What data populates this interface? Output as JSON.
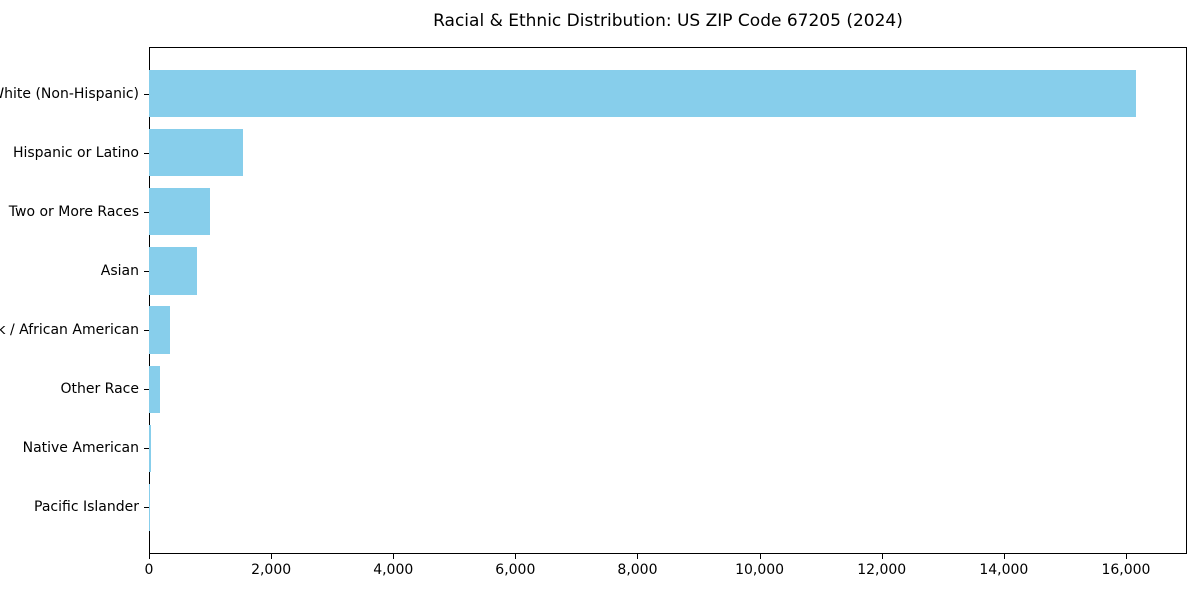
{
  "chart_data": {
    "type": "bar",
    "orientation": "horizontal",
    "title": "Racial & Ethnic Distribution: US ZIP Code 67205 (2024)",
    "categories": [
      "White (Non-Hispanic)",
      "Hispanic or Latino",
      "Two or More Races",
      "Asian",
      "Black / African American",
      "Other Race",
      "Native American",
      "Pacific Islander"
    ],
    "values": [
      16170,
      1540,
      1000,
      790,
      340,
      180,
      25,
      10
    ],
    "bar_color": "#87CEEB",
    "axis_color": "#000000",
    "text_color": "#000000",
    "background_color": "#ffffff",
    "xlabel": "",
    "ylabel": "",
    "xlim": [
      0,
      17000
    ],
    "x_ticks": [
      0,
      2000,
      4000,
      6000,
      8000,
      10000,
      12000,
      14000,
      16000
    ],
    "x_tick_labels": [
      "0",
      "2,000",
      "4,000",
      "6,000",
      "8,000",
      "10,000",
      "12,000",
      "14,000",
      "16,000"
    ],
    "grid": false,
    "legend": null
  }
}
